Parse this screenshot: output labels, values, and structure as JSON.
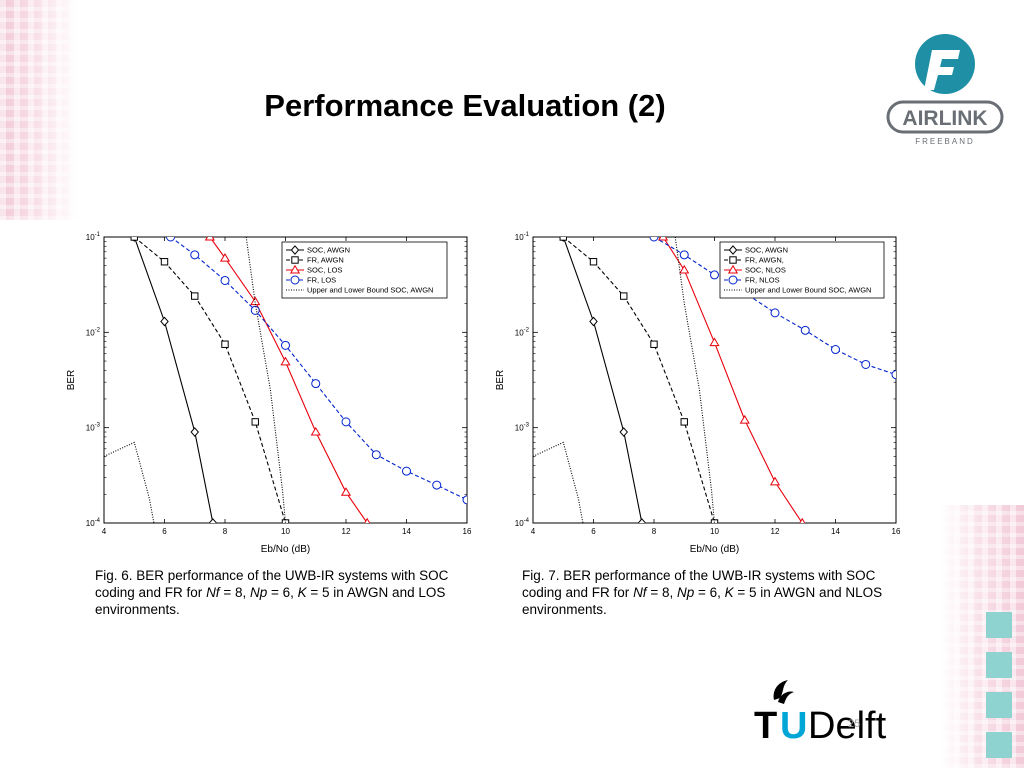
{
  "slide": {
    "title": "Performance Evaluation (2)",
    "page_number": "25"
  },
  "logos": {
    "airlink_text": "AIRLINK",
    "airlink_sub": "FREEBAND",
    "tud_t": "T",
    "tud_u": "U",
    "tud_rest": "Delft"
  },
  "captions": [
    {
      "prefix": "Fig. 6. BER performance of the UWB-IR systems with SOC coding and FR for ",
      "nf": "Nf",
      "eq1": " = 8, ",
      "np": "Np",
      "eq2": " = 6, ",
      "k": "K",
      "suffix": " = 5 in AWGN and LOS environments."
    },
    {
      "prefix": "Fig. 7. BER performance of the UWB-IR systems with SOC coding and FR for ",
      "nf": "Nf",
      "eq1": " = 8, ",
      "np": "Np",
      "eq2": " = 6, ",
      "k": "K",
      "suffix": " = 5 in AWGN and NLOS environments."
    }
  ],
  "chart_data": [
    {
      "type": "line",
      "xlabel": "Eb/No (dB)",
      "ylabel": "BER",
      "xlim": [
        4,
        16
      ],
      "ylim": [
        0.0001,
        0.1
      ],
      "yscale": "log",
      "xticks": [
        4,
        6,
        8,
        10,
        12,
        14,
        16
      ],
      "yticks": [
        0.1,
        0.01,
        0.001,
        0.0001
      ],
      "ytick_labels": [
        "10-1",
        "10-2",
        "10-3",
        "10-4"
      ],
      "legend_position": "top-right",
      "series": [
        {
          "name": "SOC, AWGN",
          "color": "#000000",
          "dash": "solid",
          "marker": "diamond",
          "x": [
            5,
            6,
            7,
            7.6
          ],
          "y": [
            0.1,
            0.013,
            0.0009,
            0.0001
          ]
        },
        {
          "name": "FR, AWGN",
          "color": "#000000",
          "dash": "dashed",
          "marker": "square",
          "x": [
            5,
            6,
            7,
            8,
            9,
            10
          ],
          "y": [
            0.1,
            0.055,
            0.024,
            0.0075,
            0.00115,
            0.0001
          ]
        },
        {
          "name": "SOC, LOS",
          "color": "#e8000b",
          "dash": "solid",
          "marker": "triangle",
          "x": [
            7.5,
            8,
            9,
            10,
            11,
            12,
            12.7
          ],
          "y": [
            0.1,
            0.06,
            0.021,
            0.0049,
            0.0009,
            0.00021,
            0.0001
          ]
        },
        {
          "name": "FR, LOS",
          "color": "#0022cc",
          "dash": "dashed",
          "marker": "circle",
          "x": [
            6.2,
            7,
            8,
            9,
            10,
            11,
            12,
            13,
            14,
            15,
            16
          ],
          "y": [
            0.1,
            0.065,
            0.035,
            0.017,
            0.0073,
            0.0029,
            0.00115,
            0.00052,
            0.00035,
            0.00025,
            0.000175
          ]
        },
        {
          "name": "Upper and Lower Bound SOC, AWGN",
          "color": "#000000",
          "dash": "dotted",
          "marker": "none",
          "x": [
            4,
            5,
            5.5,
            5.65
          ],
          "y": [
            0.0005,
            0.0007,
            0.00018,
            0.0001
          ]
        },
        {
          "name": "",
          "color": "#000000",
          "dash": "dotted",
          "marker": "none",
          "x": [
            8.7,
            9,
            9.5,
            9.9,
            10
          ],
          "y": [
            0.1,
            0.02,
            0.0025,
            0.00022,
            0.0001
          ]
        }
      ]
    },
    {
      "type": "line",
      "xlabel": "Eb/No (dB)",
      "ylabel": "BER",
      "xlim": [
        4,
        16
      ],
      "ylim": [
        0.0001,
        0.1
      ],
      "yscale": "log",
      "xticks": [
        4,
        6,
        8,
        10,
        12,
        14,
        16
      ],
      "yticks": [
        0.1,
        0.01,
        0.001,
        0.0001
      ],
      "ytick_labels": [
        "10-1",
        "10-2",
        "10-3",
        "10-4"
      ],
      "legend_position": "top-right",
      "series": [
        {
          "name": "SOC, AWGN",
          "color": "#000000",
          "dash": "solid",
          "marker": "diamond",
          "x": [
            5,
            6,
            7,
            7.6
          ],
          "y": [
            0.1,
            0.013,
            0.0009,
            0.0001
          ]
        },
        {
          "name": "FR, AWGN,",
          "color": "#000000",
          "dash": "dashed",
          "marker": "square",
          "x": [
            5,
            6,
            7,
            8,
            9,
            10
          ],
          "y": [
            0.1,
            0.055,
            0.024,
            0.0075,
            0.00115,
            0.0001
          ]
        },
        {
          "name": "SOC, NLOS",
          "color": "#e8000b",
          "dash": "solid",
          "marker": "triangle",
          "x": [
            8.3,
            9,
            10,
            11,
            12,
            12.9
          ],
          "y": [
            0.1,
            0.045,
            0.0078,
            0.0012,
            0.00027,
            0.0001
          ]
        },
        {
          "name": "FR, NLOS",
          "color": "#0022cc",
          "dash": "dashed",
          "marker": "circle",
          "x": [
            8,
            9,
            10,
            11,
            12,
            13,
            14,
            15,
            16
          ],
          "y": [
            0.1,
            0.065,
            0.04,
            0.026,
            0.016,
            0.0105,
            0.0066,
            0.0046,
            0.0036
          ]
        },
        {
          "name": "Upper and Lower Bound SOC, AWGN",
          "color": "#000000",
          "dash": "dotted",
          "marker": "none",
          "x": [
            4,
            5,
            5.5,
            5.65
          ],
          "y": [
            0.0005,
            0.0007,
            0.00018,
            0.0001
          ]
        },
        {
          "name": "",
          "color": "#000000",
          "dash": "dotted",
          "marker": "none",
          "x": [
            8.7,
            9,
            9.5,
            9.9,
            10
          ],
          "y": [
            0.1,
            0.02,
            0.0025,
            0.00022,
            0.0001
          ]
        }
      ]
    }
  ]
}
